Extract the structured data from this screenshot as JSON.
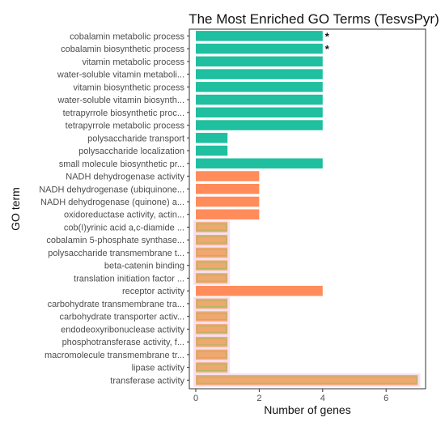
{
  "chart_data": {
    "type": "bar",
    "orientation": "horizontal",
    "title": "The Most Enriched GO Terms (TesvsPyr)",
    "xlabel": "Number of genes",
    "ylabel": "GO term",
    "xlim": [
      0,
      7.2
    ],
    "xticks": [
      "0",
      "2",
      "4",
      "6"
    ],
    "grid": false,
    "colors": {
      "BP": "#1fbfa0",
      "MF": "#ff8c5a",
      "MF_light": "#f0a870",
      "inner": "#a9b860",
      "glow": "#f9dff0"
    },
    "categories": [
      {
        "label": "cobalamin metabolic process",
        "value": 4,
        "group": "BP",
        "star": "*"
      },
      {
        "label": "cobalamin biosynthetic process",
        "value": 4,
        "group": "BP",
        "star": "*"
      },
      {
        "label": "vitamin metabolic process",
        "value": 4,
        "group": "BP"
      },
      {
        "label": "water-soluble vitamin metaboli...",
        "value": 4,
        "group": "BP"
      },
      {
        "label": "vitamin biosynthetic process",
        "value": 4,
        "group": "BP"
      },
      {
        "label": "water-soluble vitamin biosynth...",
        "value": 4,
        "group": "BP"
      },
      {
        "label": "tetrapyrrole biosynthetic proc...",
        "value": 4,
        "group": "BP"
      },
      {
        "label": "tetrapyrrole metabolic process",
        "value": 4,
        "group": "BP"
      },
      {
        "label": "polysaccharide transport",
        "value": 1,
        "group": "BP"
      },
      {
        "label": "polysaccharide localization",
        "value": 1,
        "group": "BP"
      },
      {
        "label": "small molecule biosynthetic pr...",
        "value": 4,
        "group": "BP"
      },
      {
        "label": "NADH dehydrogenase activity",
        "value": 2,
        "group": "MF"
      },
      {
        "label": "NADH dehydrogenase (ubiquinone...",
        "value": 2,
        "group": "MF"
      },
      {
        "label": "NADH dehydrogenase (quinone) a...",
        "value": 2,
        "group": "MF"
      },
      {
        "label": "oxidoreductase activity, actin...",
        "value": 2,
        "group": "MF"
      },
      {
        "label": "cob(I)yrinic acid a,c-diamide ...",
        "value": 1,
        "group": "MF_light"
      },
      {
        "label": "cobalamin 5-phosphate synthase...",
        "value": 1,
        "group": "MF_light"
      },
      {
        "label": "polysaccharide transmembrane t...",
        "value": 1,
        "group": "MF_light"
      },
      {
        "label": "beta-catenin binding",
        "value": 1,
        "group": "MF_light"
      },
      {
        "label": "translation initiation factor ...",
        "value": 1,
        "group": "MF_light"
      },
      {
        "label": "receptor activity",
        "value": 4,
        "group": "MF"
      },
      {
        "label": "carbohydrate transmembrane tra...",
        "value": 1,
        "group": "MF_light"
      },
      {
        "label": "carbohydrate transporter activ...",
        "value": 1,
        "group": "MF_light"
      },
      {
        "label": "endodeoxyribonuclease activity",
        "value": 1,
        "group": "MF_light"
      },
      {
        "label": "phosphotransferase activity, f...",
        "value": 1,
        "group": "MF_light"
      },
      {
        "label": "macromolecule transmembrane tr...",
        "value": 1,
        "group": "MF_light"
      },
      {
        "label": "lipase activity",
        "value": 1,
        "group": "MF_light"
      },
      {
        "label": "transferase activity",
        "value": 7,
        "group": "MF_light"
      }
    ]
  }
}
